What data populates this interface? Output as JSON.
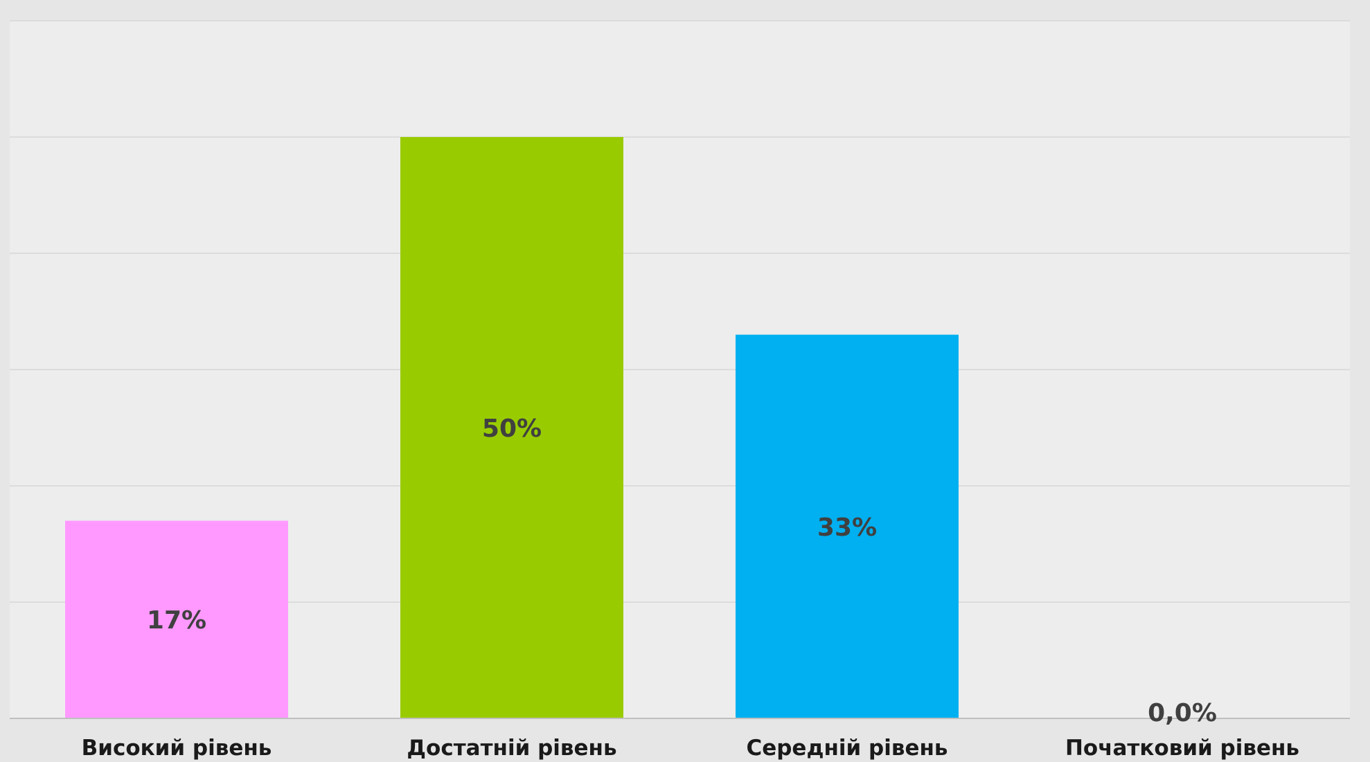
{
  "chart_data": {
    "type": "bar",
    "categories": [
      "Високий рівень",
      "Достатній рівень",
      "Середній рівень",
      "Початковий рівень"
    ],
    "values": [
      17,
      50,
      33,
      0
    ],
    "data_labels": [
      "17%",
      "50%",
      "33%",
      "0,0%"
    ],
    "colors": [
      "#ff99ff",
      "#99cc00",
      "#00b0f0",
      "#ffffff"
    ],
    "ylim": [
      0,
      60
    ],
    "grid": true,
    "legend": "none"
  },
  "colors": {
    "background": "#e6e6e6",
    "plot_background": "#ededed",
    "gridline": "#dcdcdc",
    "axis": "#bfbfbf",
    "data_label": "#404040",
    "category_label": "#1a1a1a"
  }
}
